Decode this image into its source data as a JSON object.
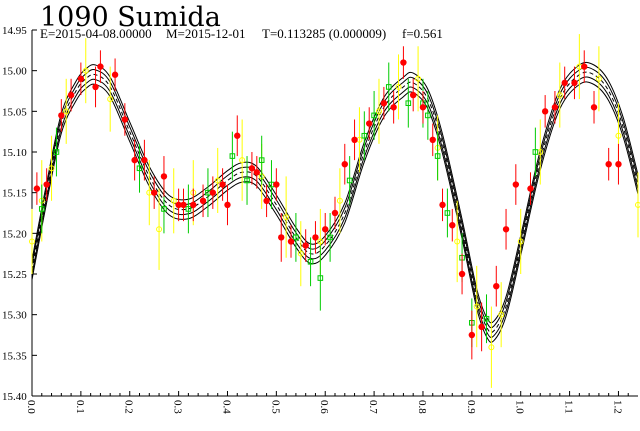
{
  "header": {
    "title": "1090 Sumida",
    "epoch": "E=2015-04-08.00000",
    "midpoint": "M=2015-12-01",
    "period": "T=0.113285 (0.000009)",
    "f": "f=0.561"
  },
  "chart_data": {
    "type": "scatter",
    "title": "1090 Sumida",
    "xlabel": "",
    "ylabel": "",
    "xlim": [
      0,
      1.24
    ],
    "ylim": [
      15.4,
      14.95
    ],
    "y_inverted": true,
    "x_ticks": [
      "0.0",
      "0.1",
      "0.2",
      "0.3",
      "0.4",
      "0.5",
      "0.6",
      "0.7",
      "0.8",
      "0.9",
      "1.0",
      "1.1",
      "1.2"
    ],
    "y_ticks": [
      "14.95",
      "15.00",
      "15.05",
      "15.10",
      "15.15",
      "15.20",
      "15.25",
      "15.30",
      "15.35",
      "15.40"
    ],
    "grid": false,
    "fit_curves": {
      "count": 5,
      "color": "#000000",
      "offsets": [
        -0.012,
        -0.006,
        0,
        0.006,
        0.012
      ],
      "dashed_center": true,
      "curve": [
        [
          0.0,
          15.245
        ],
        [
          0.03,
          15.15
        ],
        [
          0.06,
          15.065
        ],
        [
          0.09,
          15.025
        ],
        [
          0.11,
          15.01
        ],
        [
          0.13,
          15.005
        ],
        [
          0.16,
          15.02
        ],
        [
          0.2,
          15.075
        ],
        [
          0.24,
          15.13
        ],
        [
          0.28,
          15.165
        ],
        [
          0.32,
          15.17
        ],
        [
          0.36,
          15.155
        ],
        [
          0.4,
          15.135
        ],
        [
          0.43,
          15.125
        ],
        [
          0.46,
          15.13
        ],
        [
          0.5,
          15.165
        ],
        [
          0.54,
          15.205
        ],
        [
          0.57,
          15.225
        ],
        [
          0.6,
          15.215
        ],
        [
          0.64,
          15.175
        ],
        [
          0.68,
          15.1
        ],
        [
          0.72,
          15.045
        ],
        [
          0.76,
          15.02
        ],
        [
          0.78,
          15.015
        ],
        [
          0.81,
          15.035
        ],
        [
          0.84,
          15.09
        ],
        [
          0.88,
          15.195
        ],
        [
          0.91,
          15.28
        ],
        [
          0.93,
          15.315
        ],
        [
          0.945,
          15.32
        ],
        [
          0.97,
          15.29
        ],
        [
          1.0,
          15.215
        ],
        [
          1.04,
          15.11
        ],
        [
          1.08,
          15.035
        ],
        [
          1.12,
          15.005
        ],
        [
          1.15,
          15.005
        ],
        [
          1.18,
          15.025
        ],
        [
          1.21,
          15.07
        ],
        [
          1.24,
          15.14
        ]
      ]
    },
    "series": [
      {
        "color": "#ff0000",
        "marker": "filled-circle",
        "points": [
          [
            0.01,
            15.145,
            0.02
          ],
          [
            0.03,
            15.14,
            0.02
          ],
          [
            0.06,
            15.055,
            0.02
          ],
          [
            0.08,
            15.03,
            0.02
          ],
          [
            0.1,
            15.01,
            0.02
          ],
          [
            0.13,
            15.02,
            0.025
          ],
          [
            0.14,
            14.995,
            0.02
          ],
          [
            0.17,
            15.005,
            0.02
          ],
          [
            0.19,
            15.06,
            0.02
          ],
          [
            0.21,
            15.11,
            0.025
          ],
          [
            0.23,
            15.11,
            0.025
          ],
          [
            0.25,
            15.15,
            0.02
          ],
          [
            0.27,
            15.13,
            0.025
          ],
          [
            0.3,
            15.165,
            0.02
          ],
          [
            0.31,
            15.165,
            0.02
          ],
          [
            0.33,
            15.165,
            0.02
          ],
          [
            0.35,
            15.16,
            0.02
          ],
          [
            0.37,
            15.15,
            0.02
          ],
          [
            0.39,
            15.14,
            0.02
          ],
          [
            0.4,
            15.165,
            0.025
          ],
          [
            0.42,
            15.08,
            0.025
          ],
          [
            0.45,
            15.12,
            0.02
          ],
          [
            0.46,
            15.125,
            0.02
          ],
          [
            0.48,
            15.16,
            0.02
          ],
          [
            0.5,
            15.14,
            0.02
          ],
          [
            0.51,
            15.205,
            0.03
          ],
          [
            0.53,
            15.21,
            0.02
          ],
          [
            0.56,
            15.215,
            0.02
          ],
          [
            0.58,
            15.205,
            0.02
          ],
          [
            0.6,
            15.195,
            0.02
          ],
          [
            0.62,
            15.175,
            0.02
          ],
          [
            0.64,
            15.115,
            0.025
          ],
          [
            0.66,
            15.085,
            0.025
          ],
          [
            0.69,
            15.065,
            0.02
          ],
          [
            0.72,
            15.04,
            0.02
          ],
          [
            0.74,
            15.045,
            0.02
          ],
          [
            0.76,
            14.99,
            0.02
          ],
          [
            0.78,
            15.03,
            0.02
          ],
          [
            0.8,
            15.045,
            0.02
          ],
          [
            0.82,
            15.085,
            0.02
          ],
          [
            0.84,
            15.165,
            0.02
          ],
          [
            0.86,
            15.19,
            0.02
          ],
          [
            0.88,
            15.25,
            0.025
          ],
          [
            0.9,
            15.325,
            0.03
          ],
          [
            0.92,
            15.315,
            0.03
          ],
          [
            0.95,
            15.265,
            0.025
          ],
          [
            0.97,
            15.195,
            0.025
          ],
          [
            0.99,
            15.14,
            0.025
          ],
          [
            1.02,
            15.145,
            0.02
          ],
          [
            1.05,
            15.05,
            0.02
          ],
          [
            1.07,
            15.045,
            0.02
          ],
          [
            1.09,
            15.015,
            0.02
          ],
          [
            1.11,
            15.015,
            0.02
          ],
          [
            1.13,
            14.995,
            0.02
          ],
          [
            1.15,
            15.045,
            0.02
          ],
          [
            1.18,
            15.115,
            0.02
          ],
          [
            1.2,
            15.115,
            0.025
          ]
        ]
      },
      {
        "color": "#ffff00",
        "marker": "open-circle",
        "points": [
          [
            0.0,
            15.21,
            0.04
          ],
          [
            0.02,
            15.16,
            0.05
          ],
          [
            0.04,
            15.12,
            0.04
          ],
          [
            0.07,
            15.05,
            0.04
          ],
          [
            0.11,
            15.0,
            0.04
          ],
          [
            0.16,
            15.035,
            0.04
          ],
          [
            0.24,
            15.15,
            0.04
          ],
          [
            0.26,
            15.195,
            0.05
          ],
          [
            0.29,
            15.16,
            0.04
          ],
          [
            0.33,
            15.15,
            0.04
          ],
          [
            0.38,
            15.135,
            0.04
          ],
          [
            0.43,
            15.11,
            0.05
          ],
          [
            0.47,
            15.13,
            0.04
          ],
          [
            0.52,
            15.18,
            0.05
          ],
          [
            0.55,
            15.225,
            0.04
          ],
          [
            0.59,
            15.21,
            0.04
          ],
          [
            0.63,
            15.16,
            0.04
          ],
          [
            0.67,
            15.085,
            0.04
          ],
          [
            0.71,
            15.05,
            0.04
          ],
          [
            0.75,
            15.02,
            0.04
          ],
          [
            0.79,
            15.01,
            0.04
          ],
          [
            0.83,
            15.095,
            0.04
          ],
          [
            0.87,
            15.21,
            0.05
          ],
          [
            0.91,
            15.29,
            0.05
          ],
          [
            0.94,
            15.34,
            0.05
          ],
          [
            0.96,
            15.3,
            0.04
          ],
          [
            1.0,
            15.21,
            0.04
          ],
          [
            1.04,
            15.1,
            0.04
          ],
          [
            1.08,
            15.03,
            0.04
          ],
          [
            1.12,
            14.995,
            0.04
          ],
          [
            1.16,
            15.01,
            0.04
          ],
          [
            1.2,
            15.08,
            0.04
          ],
          [
            1.24,
            15.165,
            0.04
          ]
        ]
      },
      {
        "color": "#00cc00",
        "marker": "open-square",
        "points": [
          [
            0.02,
            15.17,
            0.03
          ],
          [
            0.05,
            15.1,
            0.03
          ],
          [
            0.22,
            15.12,
            0.03
          ],
          [
            0.27,
            15.17,
            0.03
          ],
          [
            0.32,
            15.17,
            0.03
          ],
          [
            0.36,
            15.15,
            0.03
          ],
          [
            0.41,
            15.105,
            0.03
          ],
          [
            0.44,
            15.135,
            0.03
          ],
          [
            0.47,
            15.11,
            0.03
          ],
          [
            0.49,
            15.14,
            0.03
          ],
          [
            0.54,
            15.205,
            0.03
          ],
          [
            0.57,
            15.235,
            0.03
          ],
          [
            0.59,
            15.255,
            0.04
          ],
          [
            0.61,
            15.205,
            0.03
          ],
          [
            0.65,
            15.135,
            0.03
          ],
          [
            0.68,
            15.08,
            0.03
          ],
          [
            0.7,
            15.055,
            0.03
          ],
          [
            0.73,
            15.02,
            0.03
          ],
          [
            0.77,
            15.04,
            0.03
          ],
          [
            0.8,
            15.04,
            0.03
          ],
          [
            0.81,
            15.055,
            0.03
          ],
          [
            0.83,
            15.105,
            0.03
          ],
          [
            0.85,
            15.175,
            0.03
          ],
          [
            0.88,
            15.23,
            0.03
          ],
          [
            0.9,
            15.31,
            0.03
          ],
          [
            0.93,
            15.305,
            0.03
          ],
          [
            1.03,
            15.1,
            0.03
          ]
        ]
      }
    ]
  }
}
